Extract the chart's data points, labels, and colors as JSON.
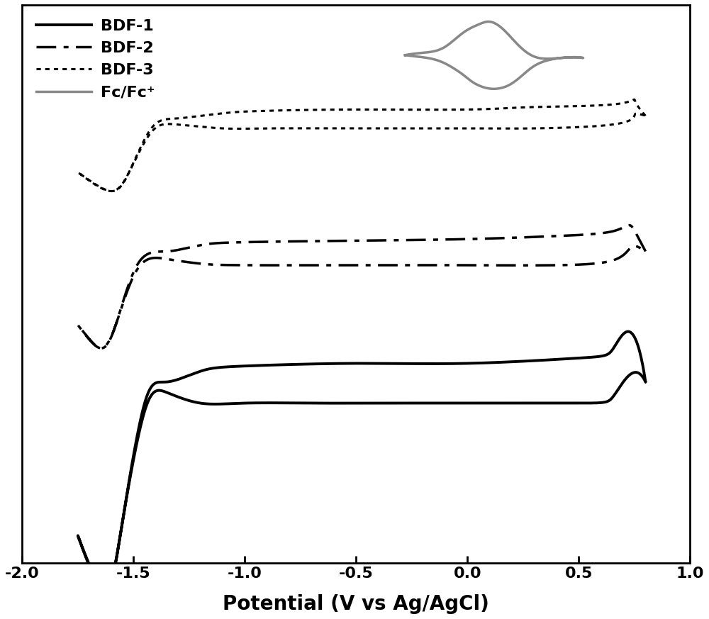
{
  "xlabel": "Potential (V vs Ag/AgCl)",
  "xlabel_fontsize": 20,
  "xlabel_fontweight": "bold",
  "xlim": [
    -2.0,
    1.0
  ],
  "ylim": [
    -1.0,
    1.0
  ],
  "xticks": [
    -2.0,
    -1.5,
    -1.0,
    -0.5,
    0.0,
    0.5,
    1.0
  ],
  "xtick_labels": [
    "-2.0",
    "-1.5",
    "-1.0",
    "-0.5",
    "0.0",
    "0.5",
    "1.0"
  ],
  "line_color_bdf1": "#000000",
  "line_color_bdf2": "#000000",
  "line_color_bdf3": "#000000",
  "line_color_fc": "#888888",
  "legend_labels": [
    "BDF-1",
    "BDF-2",
    "BDF-3",
    "Fc/Fc⁺"
  ],
  "legend_fontsize": 16,
  "tick_fontsize": 16,
  "background_color": "#ffffff",
  "figsize": [
    10.0,
    8.73
  ],
  "dpi": 100
}
